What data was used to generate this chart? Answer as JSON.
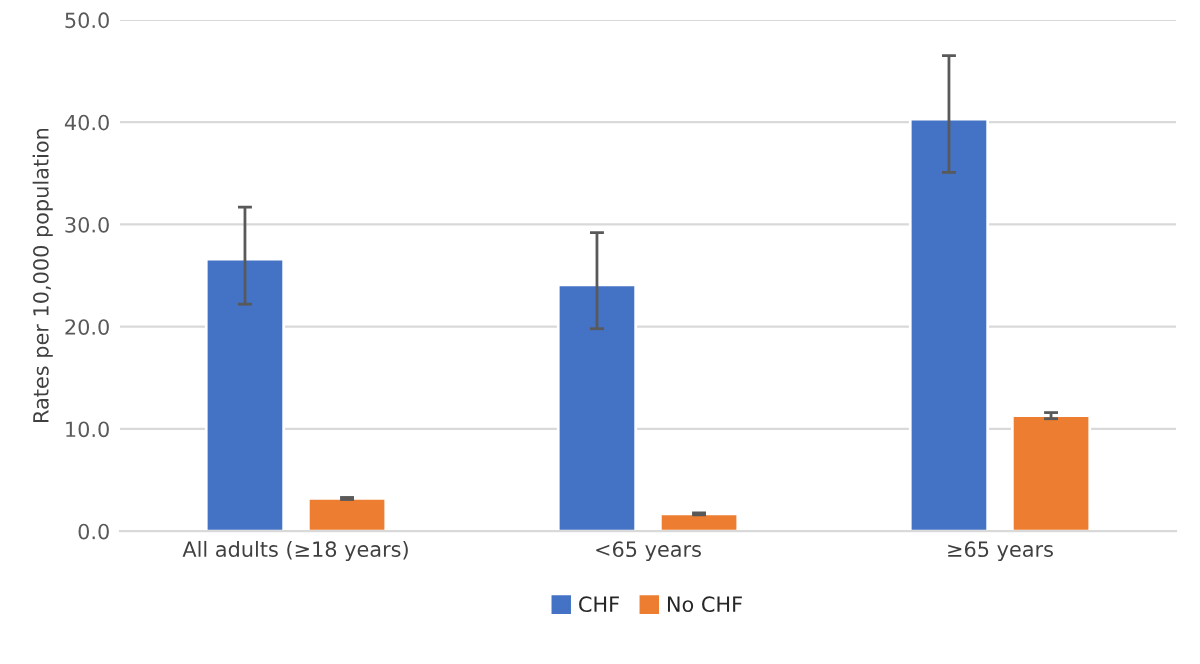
{
  "chart_data": {
    "type": "bar",
    "ylabel": "Rates per 10,000 population",
    "categories": [
      "All adults (≥18 years)",
      "<65 years",
      "≥65 years"
    ],
    "series": [
      {
        "name": "CHF",
        "color": "#4472c4",
        "values": [
          26.6,
          24.1,
          40.3
        ],
        "errors": [
          [
            22.2,
            31.7
          ],
          [
            19.8,
            29.2
          ],
          [
            35.1,
            46.5
          ]
        ]
      },
      {
        "name": "No CHF",
        "color": "#ed7d31",
        "values": [
          3.2,
          1.7,
          11.3
        ],
        "errors": [
          [
            3.1,
            3.3
          ],
          [
            1.6,
            1.8
          ],
          [
            11.0,
            11.6
          ]
        ]
      }
    ],
    "ylim": [
      0,
      50
    ],
    "yticks": [
      {
        "value": 0,
        "label": "0.0"
      },
      {
        "value": 10,
        "label": "10.0"
      },
      {
        "value": 20,
        "label": "20.0"
      },
      {
        "value": 30,
        "label": "30.0"
      },
      {
        "value": 40,
        "label": "40.0"
      },
      {
        "value": 50,
        "label": "50.0"
      }
    ],
    "grid": "y",
    "legend": "bottom"
  }
}
